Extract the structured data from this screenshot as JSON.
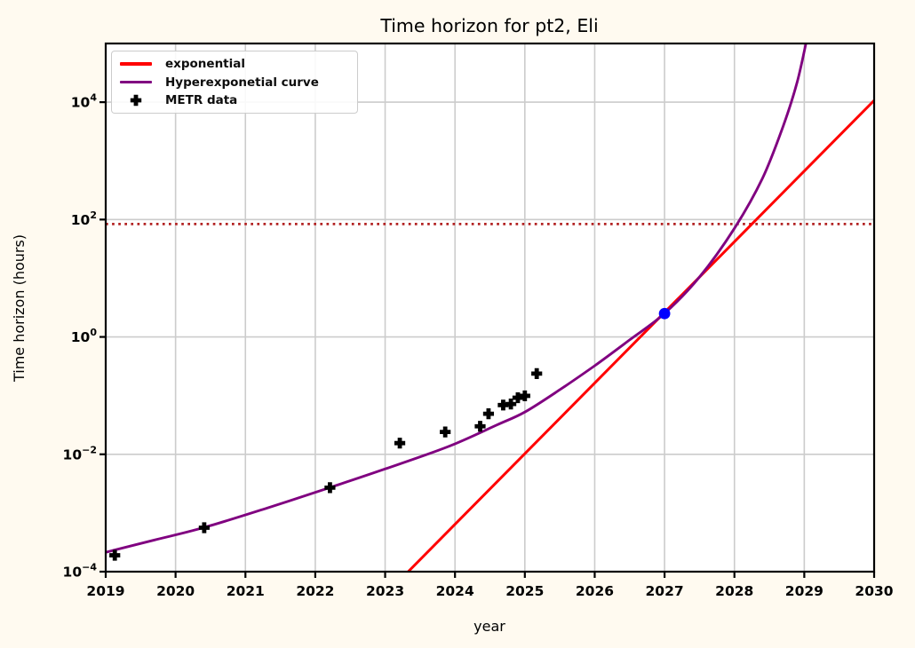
{
  "chart_data": {
    "type": "line",
    "title": "Time horizon for pt2, Eli",
    "xlabel": "year",
    "ylabel": "Time horizon (hours)",
    "x_range": [
      2019,
      2030
    ],
    "y_scale": "log",
    "y_range_log10": [
      -4,
      5
    ],
    "x_ticks": [
      2019,
      2020,
      2021,
      2022,
      2023,
      2024,
      2025,
      2026,
      2027,
      2028,
      2029,
      2030
    ],
    "y_tick_exponents": [
      -4,
      -2,
      0,
      2,
      4
    ],
    "grid": true,
    "legend_position": "upper-left",
    "colors": {
      "figure_background": "#fffaf0",
      "axes_background": "#ffffff",
      "grid": "#cccccc",
      "spine": "#000000",
      "text": "#000000"
    },
    "series": [
      {
        "name": "exponential",
        "type": "line",
        "color": "#ff0000",
        "points_year_log10": [
          [
            2023.33,
            -4.0
          ],
          [
            2030.0,
            4.03
          ]
        ]
      },
      {
        "name": "Hyperexponetial curve",
        "type": "curve",
        "color": "#800080",
        "points_year_log10": [
          [
            2019.0,
            -3.67
          ],
          [
            2019.7,
            -3.46
          ],
          [
            2020.4,
            -3.25
          ],
          [
            2021.3,
            -2.92
          ],
          [
            2022.2,
            -2.57
          ],
          [
            2023.0,
            -2.25
          ],
          [
            2023.9,
            -1.87
          ],
          [
            2024.6,
            -1.5
          ],
          [
            2025.0,
            -1.28
          ],
          [
            2025.5,
            -0.9
          ],
          [
            2026.0,
            -0.49
          ],
          [
            2026.5,
            -0.05
          ],
          [
            2027.0,
            0.4
          ],
          [
            2027.5,
            1.02
          ],
          [
            2028.0,
            1.85
          ],
          [
            2028.4,
            2.7
          ],
          [
            2028.7,
            3.6
          ],
          [
            2028.9,
            4.35
          ],
          [
            2029.05,
            5.15
          ]
        ]
      },
      {
        "name": "METR data",
        "type": "scatter-plus",
        "color": "#000000",
        "points_year_hours": [
          [
            2019.13,
            0.00019
          ],
          [
            2020.41,
            0.00056
          ],
          [
            2022.21,
            0.0027
          ],
          [
            2023.21,
            0.0155
          ],
          [
            2023.86,
            0.024
          ],
          [
            2024.36,
            0.03
          ],
          [
            2024.48,
            0.049
          ],
          [
            2024.69,
            0.069
          ],
          [
            2024.8,
            0.072
          ],
          [
            2024.9,
            0.092
          ],
          [
            2025.0,
            0.099
          ],
          [
            2025.17,
            0.237
          ]
        ]
      }
    ],
    "threshold_line": {
      "value_hours": 84,
      "style": "dotted",
      "color": "#b22222"
    },
    "highlight_point": {
      "year": 2027,
      "hours": 2.5,
      "color": "#0000ff"
    }
  }
}
